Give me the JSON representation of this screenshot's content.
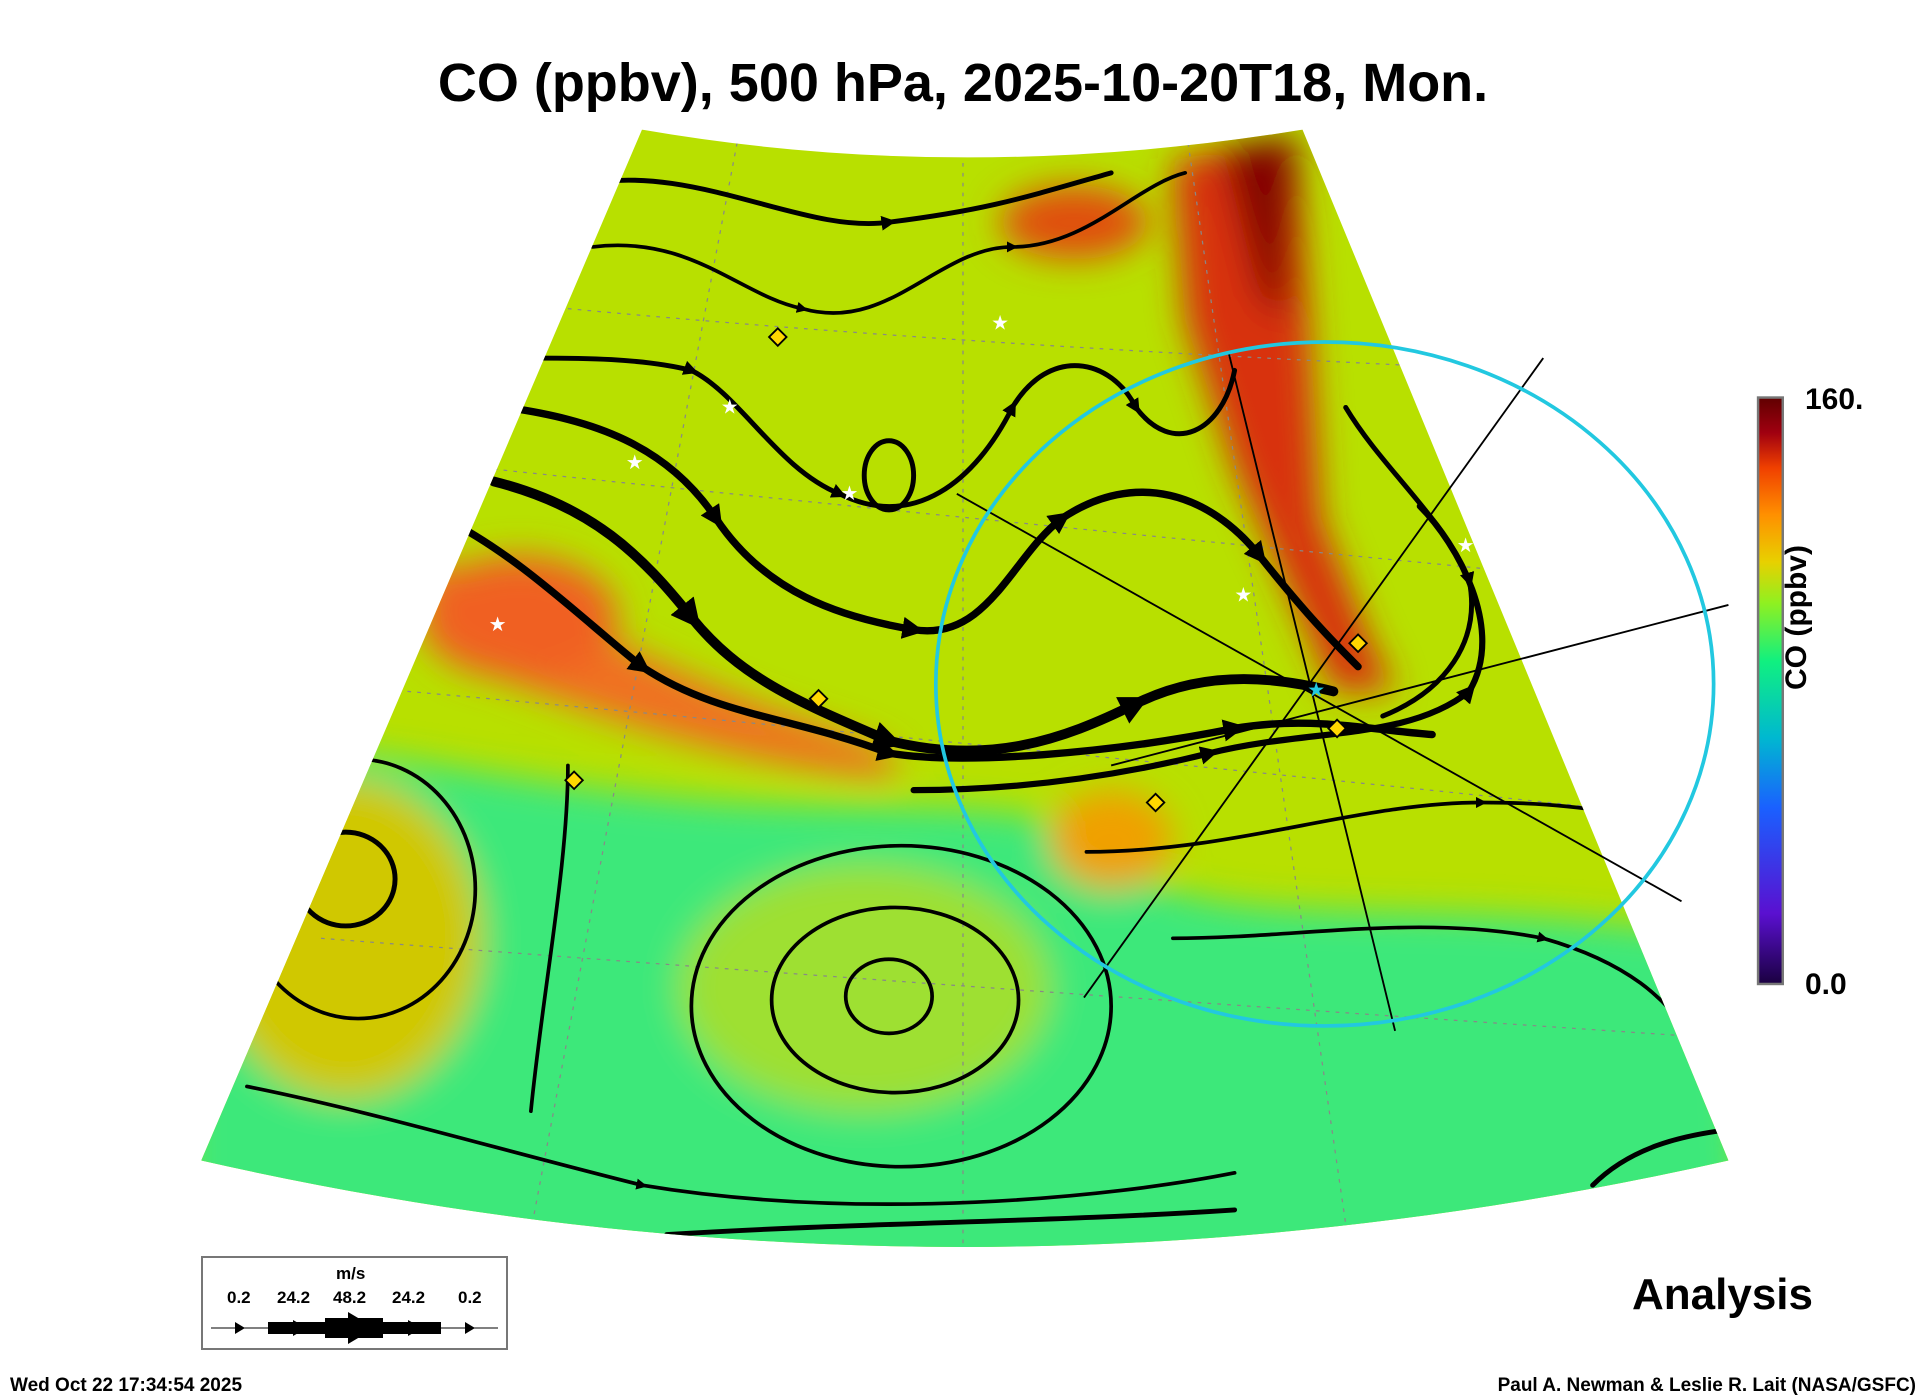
{
  "title": "CO (ppbv), 500 hPa, 2025-10-20T18, Mon.",
  "colorbar": {
    "label": "CO (ppbv)",
    "max_label": "160.",
    "min_label": "0.0",
    "min": 0,
    "max": 160
  },
  "legend": {
    "units": "m/s",
    "speeds": [
      "0.2",
      "24.2",
      "48.2",
      "24.2",
      "0.2"
    ]
  },
  "product_label": "Analysis",
  "timestamp": "Wed Oct 22 17:34:54 2025",
  "credit": "Paul A. Newman & Leslie R. Lait (NASA/GSFC)",
  "colors": {
    "background_co": "#b8e000",
    "low_co": "#3ee87a",
    "high_co": "#e84a10",
    "max_co": "#6a0000",
    "circle": "#22c8e0"
  }
}
